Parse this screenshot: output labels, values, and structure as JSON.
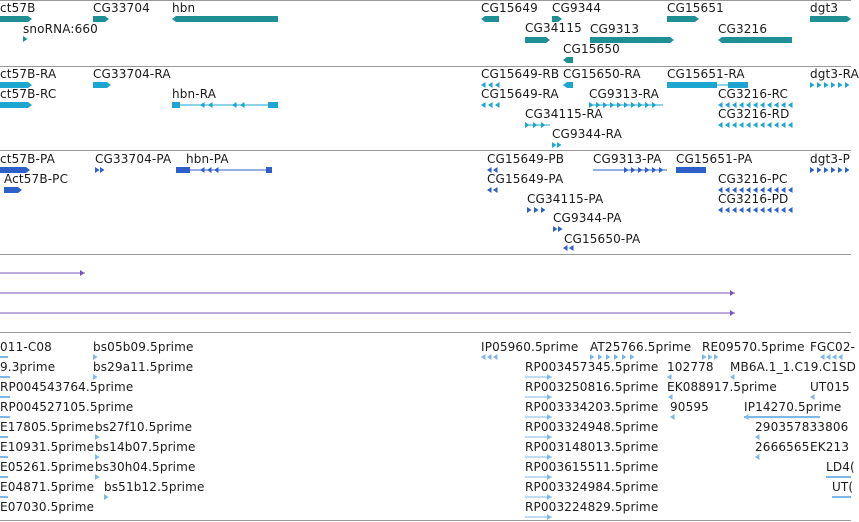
{
  "colors": {
    "gene": "#1f8f96",
    "gene_head": "#2e9ea3",
    "mrna": "#1ca6d0",
    "cds": "#2f5fc8",
    "purple": "#7a55b8",
    "est": "#7fb8e6",
    "separator": "#9a9a9a",
    "text": "#1a1a1a"
  },
  "tracks": {
    "genes": {
      "labels": [
        "ct57B",
        "CG33704",
        "hbn",
        "snoRNA:660",
        "CG15649",
        "CG9344",
        "CG15651",
        "dgt3",
        "CG34115",
        "CG9313",
        "CG3216",
        "CG15650"
      ]
    },
    "transcripts": {
      "labels": [
        "ct57B-RA",
        "CG33704-RA",
        "ct57B-RC",
        "hbn-RA",
        "CG15649-RB",
        "CG15650-RA",
        "CG15651-RA",
        "dgt3-RA",
        "CG15649-RA",
        "CG9313-RA",
        "CG3216-RC",
        "CG34115-RA",
        "CG3216-RD",
        "CG9344-RA"
      ]
    },
    "proteins": {
      "labels": [
        "ct57B-PA",
        "CG33704-PA",
        "hbn-PA",
        "Act57B-PC",
        "CG15649-PB",
        "CG9313-PA",
        "CG15651-PA",
        "dgt3-P",
        "CG15649-PA",
        "CG3216-PC",
        "CG34115-PA",
        "CG3216-PD",
        "CG9344-PA",
        "CG15650-PA"
      ]
    },
    "ests": {
      "labels": [
        "011-C08",
        "bs05b09.5prime",
        "IP05960.5prime",
        "AT25766.5prime",
        "RE09570.5prime",
        "FGC02-",
        "9.3prime",
        "bs29a11.5prime",
        "RP003457345.5prime",
        "102778",
        "MB6A.1_1.C19.C1SD",
        "RP004543764.5prime",
        "RP003250816.5prime",
        "EK088917.5prime",
        "UT015",
        "RP004527105.5prime",
        "RP003334203.5prime",
        "90595",
        "IP14270.5prime",
        "E17805.5prime",
        "bs27f10.5prime",
        "RP003324948.5prime",
        "290357833806",
        "E10931.5prime",
        "bs14b07.5prime",
        "RP003148013.5prime",
        "2666565",
        "EK213",
        "E05261.5prime",
        "bs30h04.5prime",
        "RP003615511.5prime",
        "LD4(",
        "E04871.5prime",
        "bs51b12.5prime",
        "RP003324984.5prime",
        "UT(",
        "E07030.5prime",
        "RP003224829.5prime"
      ]
    }
  }
}
